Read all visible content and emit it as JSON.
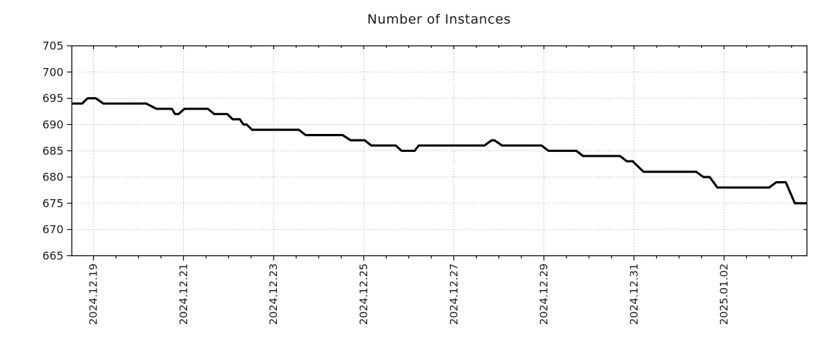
{
  "title": "Number of Instances",
  "chart_data": {
    "type": "line",
    "title": "Number of Instances",
    "x_axis": {
      "unit": "days relative to 2024-12-19 00:00",
      "range": [
        -0.48,
        15.84
      ],
      "major_ticks": [
        {
          "day": 0,
          "label": "2024.12.19"
        },
        {
          "day": 2,
          "label": "2024.12.21"
        },
        {
          "day": 4,
          "label": "2024.12.23"
        },
        {
          "day": 6,
          "label": "2024.12.25"
        },
        {
          "day": 8,
          "label": "2024.12.27"
        },
        {
          "day": 10,
          "label": "2024.12.29"
        },
        {
          "day": 12,
          "label": "2024.12.31"
        },
        {
          "day": 14,
          "label": "2025.01.02"
        }
      ],
      "minor_tick_interval_days": 0.5,
      "gridlines": true
    },
    "y_axis": {
      "range": [
        665,
        705
      ],
      "tick_interval": 5,
      "ticks": [
        665,
        670,
        675,
        680,
        685,
        690,
        695,
        700,
        705
      ],
      "gridlines": true
    },
    "legend": "none",
    "series": [
      {
        "name": "instances",
        "color": "#000000",
        "line_width": 3.2,
        "points": [
          [
            -0.48,
            694
          ],
          [
            -0.25,
            694
          ],
          [
            -0.13,
            695
          ],
          [
            0.05,
            695
          ],
          [
            0.22,
            694
          ],
          [
            1.17,
            694
          ],
          [
            1.4,
            693
          ],
          [
            1.74,
            693
          ],
          [
            1.81,
            692
          ],
          [
            1.89,
            692
          ],
          [
            2.02,
            693
          ],
          [
            2.54,
            693
          ],
          [
            2.68,
            692
          ],
          [
            2.97,
            692
          ],
          [
            3.09,
            691
          ],
          [
            3.25,
            691
          ],
          [
            3.33,
            690
          ],
          [
            3.4,
            690
          ],
          [
            3.52,
            689
          ],
          [
            4.56,
            689
          ],
          [
            4.71,
            688
          ],
          [
            5.53,
            688
          ],
          [
            5.71,
            687
          ],
          [
            6.02,
            687
          ],
          [
            6.17,
            686
          ],
          [
            6.71,
            686
          ],
          [
            6.84,
            685
          ],
          [
            7.13,
            685
          ],
          [
            7.22,
            686
          ],
          [
            8.68,
            686
          ],
          [
            8.84,
            687
          ],
          [
            8.9,
            687
          ],
          [
            9.07,
            686
          ],
          [
            9.95,
            686
          ],
          [
            10.1,
            685
          ],
          [
            10.72,
            685
          ],
          [
            10.87,
            684
          ],
          [
            11.69,
            684
          ],
          [
            11.84,
            683
          ],
          [
            11.97,
            683
          ],
          [
            12.21,
            681
          ],
          [
            13.38,
            681
          ],
          [
            13.54,
            680
          ],
          [
            13.68,
            680
          ],
          [
            13.85,
            678
          ],
          [
            15.0,
            678
          ],
          [
            15.16,
            679
          ],
          [
            15.37,
            679
          ],
          [
            15.57,
            675
          ],
          [
            15.84,
            675
          ]
        ]
      }
    ],
    "colors": {
      "grid": "#a8a8a8",
      "axis": "#000000",
      "text": "#1a1a1a",
      "background": "#ffffff"
    }
  }
}
